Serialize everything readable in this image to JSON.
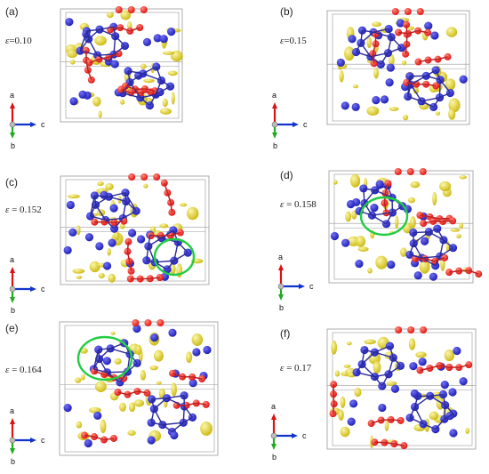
{
  "panels": [
    {
      "label": "(a)",
      "strain_symbol": "ε",
      "strain_value": "=0.10",
      "highlight": false
    },
    {
      "label": "(b)",
      "strain_symbol": "ε",
      "strain_value": "=0.15",
      "highlight": false
    },
    {
      "label": "(c)",
      "strain_symbol": "ε",
      "strain_value": " = 0.152",
      "highlight": true
    },
    {
      "label": "(d)",
      "strain_symbol": "ε",
      "strain_value": " = 0.158",
      "highlight": true
    },
    {
      "label": "(e)",
      "strain_symbol": "ε",
      "strain_value": " = 0.164",
      "highlight": true
    },
    {
      "label": "(f)",
      "strain_symbol": "ε",
      "strain_value": " = 0.17",
      "highlight": false
    }
  ],
  "axes": {
    "a": "a",
    "b": "b",
    "c": "c"
  },
  "colors": {
    "boron_atom": "#1f1fb4",
    "oxygen_atom": "#e01010",
    "charge_isosurface": "#e8e020",
    "highlight_ring": "#22cc44",
    "cell_edge": "#9a9a9a",
    "axis_a": "#dd1111",
    "axis_b": "#22aa22",
    "axis_c": "#1133cc"
  }
}
